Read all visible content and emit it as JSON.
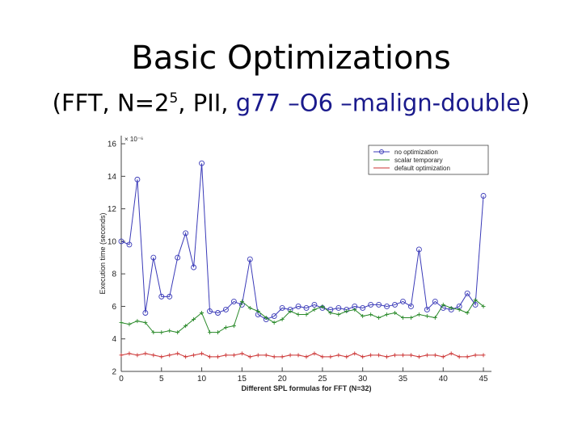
{
  "slide": {
    "title": "Basic Optimizations",
    "subtitle_pre": "(FFT, N=2",
    "subtitle_sup": "5",
    "subtitle_mid": ", PII, ",
    "subtitle_cmd": "g77 –O6 –malign-double",
    "subtitle_end": ")"
  },
  "chart_data": {
    "type": "line",
    "title": "",
    "xlabel": "Different SPL formulas for FFT (N=32)",
    "ylabel": "Execution time (seconds)",
    "y_multiplier": "× 10⁻⁶",
    "xlim": [
      0,
      46
    ],
    "ylim": [
      2,
      16.5
    ],
    "xticks": [
      0,
      5,
      10,
      15,
      20,
      25,
      30,
      35,
      40,
      45
    ],
    "yticks": [
      2,
      4,
      6,
      8,
      10,
      12,
      14,
      16
    ],
    "grid": false,
    "legend_position": "top-right",
    "series": [
      {
        "name": "no optimization",
        "color": "#3a3ab8",
        "marker": "circle",
        "values": [
          10.0,
          9.8,
          13.8,
          5.6,
          9.0,
          6.6,
          6.6,
          9.0,
          10.5,
          8.4,
          14.8,
          5.7,
          5.6,
          5.8,
          6.3,
          6.1,
          8.9,
          5.5,
          5.2,
          5.4,
          5.9,
          5.8,
          6.0,
          5.9,
          6.1,
          5.9,
          5.8,
          5.9,
          5.8,
          6.0,
          5.9,
          6.1,
          6.1,
          6.0,
          6.1,
          6.3,
          6.0,
          9.5,
          5.8,
          6.3,
          5.9,
          5.8,
          6.0,
          6.8,
          6.1,
          12.8
        ]
      },
      {
        "name": "scalar temporary",
        "color": "#2a8a2a",
        "marker": "none",
        "values": [
          5.0,
          4.9,
          5.1,
          5.0,
          4.4,
          4.4,
          4.5,
          4.4,
          4.8,
          5.2,
          5.6,
          4.4,
          4.4,
          4.7,
          4.8,
          6.3,
          5.9,
          5.7,
          5.3,
          5.0,
          5.2,
          5.7,
          5.5,
          5.5,
          5.8,
          6.0,
          5.6,
          5.5,
          5.7,
          5.8,
          5.4,
          5.5,
          5.3,
          5.5,
          5.6,
          5.3,
          5.3,
          5.5,
          5.4,
          5.3,
          6.1,
          5.9,
          5.8,
          5.6,
          6.4,
          6.0
        ]
      },
      {
        "name": "default optimization",
        "color": "#cc3333",
        "marker": "none",
        "values": [
          3.0,
          3.1,
          3.0,
          3.1,
          3.0,
          2.9,
          3.0,
          3.1,
          2.9,
          3.0,
          3.1,
          2.9,
          2.9,
          3.0,
          3.0,
          3.1,
          2.9,
          3.0,
          3.0,
          2.9,
          2.9,
          3.0,
          3.0,
          2.9,
          3.1,
          2.9,
          2.9,
          3.0,
          2.9,
          3.1,
          2.9,
          3.0,
          3.0,
          2.9,
          3.0,
          3.0,
          3.0,
          2.9,
          3.0,
          3.0,
          2.9,
          3.1,
          2.9,
          2.9,
          3.0,
          3.0
        ]
      }
    ]
  }
}
